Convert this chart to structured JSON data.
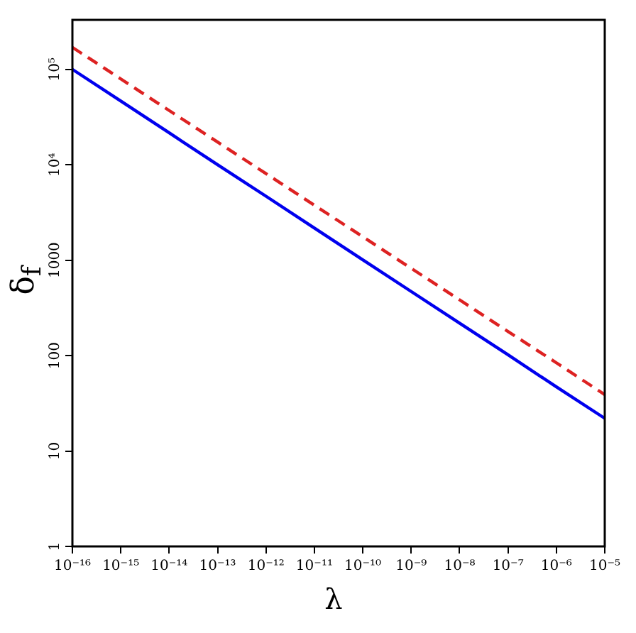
{
  "chart_data": {
    "type": "line",
    "xlabel": "λ",
    "ylabel": "δ$_{f}$",
    "log": "xy",
    "grid": false,
    "legend": false,
    "marker": "none",
    "xlim": [
      1e-16,
      1e-05
    ],
    "xticks": [
      {
        "value": 1e-16,
        "label": "10⁻¹⁶"
      },
      {
        "value": 1e-15,
        "label": "10⁻¹⁵"
      },
      {
        "value": 1e-14,
        "label": "10⁻¹⁴"
      },
      {
        "value": 1e-13,
        "label": "10⁻¹³"
      },
      {
        "value": 1e-12,
        "label": "10⁻¹²"
      },
      {
        "value": 1e-11,
        "label": "10⁻¹¹"
      },
      {
        "value": 1e-10,
        "label": "10⁻¹⁰"
      },
      {
        "value": 1e-09,
        "label": "10⁻⁹"
      },
      {
        "value": 1e-08,
        "label": "10⁻⁸"
      },
      {
        "value": 1e-07,
        "label": "10⁻⁷"
      },
      {
        "value": 1e-06,
        "label": "10⁻⁶"
      },
      {
        "value": 1e-05,
        "label": "10⁻⁵"
      }
    ],
    "x": [
      1e-16,
      1e-15,
      1e-14,
      1e-13,
      1e-12,
      1e-11,
      1e-10,
      1e-09,
      1e-08,
      1e-07,
      1e-06,
      1e-05
    ],
    "ylim": [
      1,
      330000
    ],
    "yticks": [
      1,
      10,
      100,
      1000,
      {
        "value": 10000,
        "label": "10⁴"
      },
      {
        "value": 100000,
        "label": "10⁵"
      }
    ],
    "series": [
      {
        "color": "#0000ee",
        "line_style": "solid",
        "values": [
          100000,
          46500,
          21600,
          10000,
          4680,
          2170,
          1010,
          470,
          219,
          102,
          47,
          22
        ]
      },
      {
        "color": "#dd2222",
        "line_style": "dashed",
        "values": [
          170000,
          79300,
          37000,
          17300,
          8070,
          3770,
          1760,
          822,
          384,
          179,
          84,
          39
        ]
      }
    ]
  }
}
